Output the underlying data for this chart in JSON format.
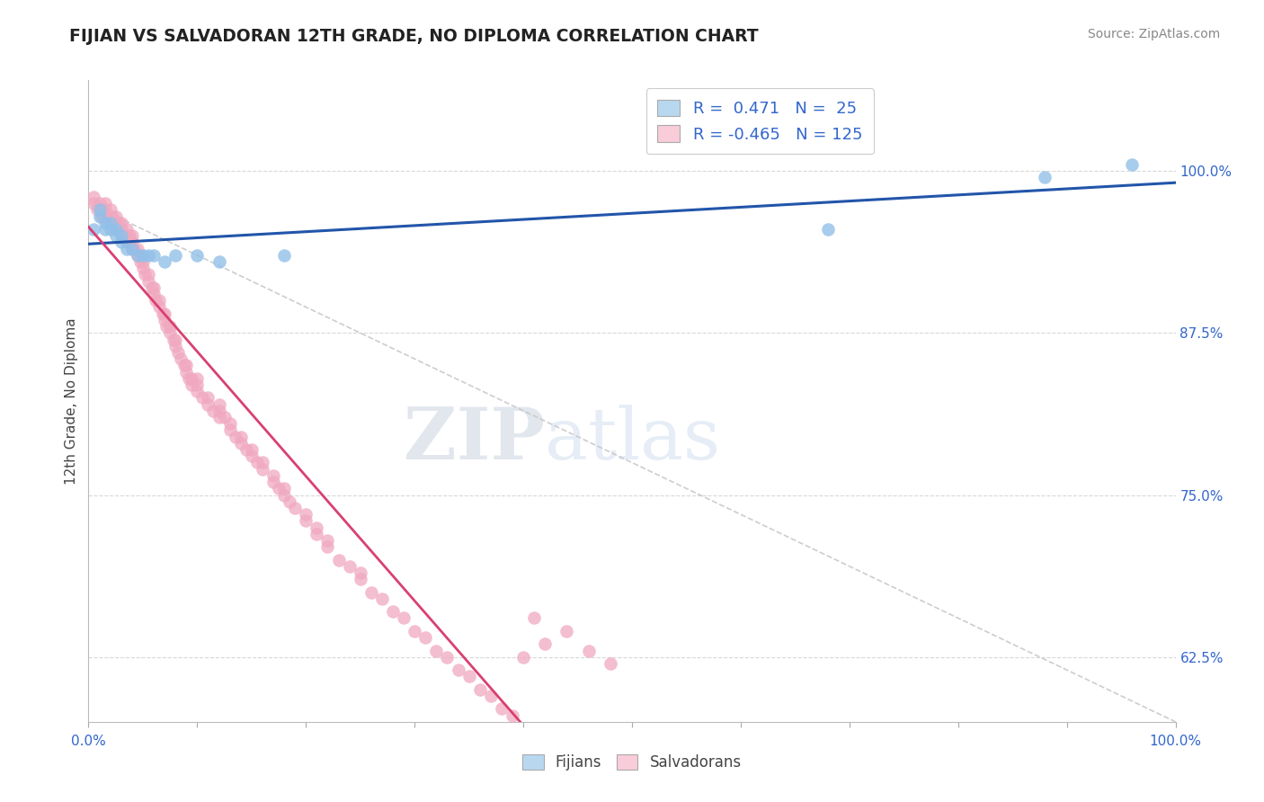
{
  "title": "FIJIAN VS SALVADORAN 12TH GRADE, NO DIPLOMA CORRELATION CHART",
  "source": "Source: ZipAtlas.com",
  "ylabel": "12th Grade, No Diploma",
  "right_yticks": [
    0.625,
    0.75,
    0.875,
    1.0
  ],
  "right_yticklabels": [
    "62.5%",
    "75.0%",
    "87.5%",
    "100.0%"
  ],
  "xlim": [
    0.0,
    1.0
  ],
  "ylim": [
    0.575,
    1.07
  ],
  "fijian_R": 0.471,
  "fijian_N": 25,
  "salvadoran_R": -0.465,
  "salvadoran_N": 125,
  "fijian_color": "#92c0e8",
  "salvadoran_color": "#f0a8bf",
  "fijian_line_color": "#2255aa",
  "salvadoran_line_color": "#d94070",
  "ref_line_color": "#c8c8c8",
  "legend_fijian_box_color": "#b8d8f0",
  "legend_salvadoran_box_color": "#f8ccd8",
  "watermark_zip": "ZIP",
  "watermark_atlas": "atlas",
  "fijian_x": [
    0.005,
    0.01,
    0.01,
    0.015,
    0.015,
    0.02,
    0.02,
    0.025,
    0.025,
    0.03,
    0.03,
    0.035,
    0.04,
    0.045,
    0.05,
    0.055,
    0.06,
    0.07,
    0.08,
    0.1,
    0.12,
    0.18,
    0.68,
    0.88,
    0.96
  ],
  "fijian_y": [
    0.955,
    0.97,
    0.965,
    0.955,
    0.96,
    0.955,
    0.96,
    0.955,
    0.95,
    0.945,
    0.95,
    0.94,
    0.94,
    0.935,
    0.935,
    0.935,
    0.935,
    0.93,
    0.935,
    0.935,
    0.93,
    0.935,
    0.955,
    0.995,
    1.005
  ],
  "salvadoran_x": [
    0.005,
    0.005,
    0.008,
    0.01,
    0.01,
    0.012,
    0.012,
    0.015,
    0.015,
    0.015,
    0.018,
    0.02,
    0.02,
    0.02,
    0.022,
    0.022,
    0.025,
    0.025,
    0.025,
    0.028,
    0.028,
    0.03,
    0.03,
    0.03,
    0.032,
    0.035,
    0.035,
    0.035,
    0.038,
    0.038,
    0.04,
    0.04,
    0.04,
    0.042,
    0.045,
    0.045,
    0.048,
    0.048,
    0.05,
    0.05,
    0.052,
    0.055,
    0.055,
    0.058,
    0.06,
    0.06,
    0.062,
    0.065,
    0.065,
    0.068,
    0.07,
    0.07,
    0.072,
    0.075,
    0.075,
    0.078,
    0.08,
    0.08,
    0.082,
    0.085,
    0.088,
    0.09,
    0.09,
    0.092,
    0.095,
    0.095,
    0.1,
    0.1,
    0.1,
    0.105,
    0.11,
    0.11,
    0.115,
    0.12,
    0.12,
    0.12,
    0.125,
    0.13,
    0.13,
    0.135,
    0.14,
    0.14,
    0.145,
    0.15,
    0.15,
    0.155,
    0.16,
    0.16,
    0.17,
    0.17,
    0.175,
    0.18,
    0.18,
    0.185,
    0.19,
    0.2,
    0.2,
    0.21,
    0.21,
    0.22,
    0.22,
    0.23,
    0.24,
    0.25,
    0.25,
    0.26,
    0.27,
    0.28,
    0.29,
    0.3,
    0.31,
    0.32,
    0.33,
    0.34,
    0.35,
    0.36,
    0.37,
    0.38,
    0.39,
    0.4,
    0.41,
    0.42,
    0.44,
    0.46,
    0.48
  ],
  "salvadoran_y": [
    0.975,
    0.98,
    0.97,
    0.97,
    0.975,
    0.97,
    0.965,
    0.965,
    0.97,
    0.975,
    0.965,
    0.96,
    0.965,
    0.97,
    0.96,
    0.965,
    0.955,
    0.96,
    0.965,
    0.955,
    0.96,
    0.95,
    0.955,
    0.96,
    0.95,
    0.945,
    0.95,
    0.955,
    0.945,
    0.95,
    0.94,
    0.945,
    0.95,
    0.94,
    0.935,
    0.94,
    0.93,
    0.935,
    0.925,
    0.93,
    0.92,
    0.915,
    0.92,
    0.91,
    0.905,
    0.91,
    0.9,
    0.895,
    0.9,
    0.89,
    0.885,
    0.89,
    0.88,
    0.875,
    0.88,
    0.87,
    0.865,
    0.87,
    0.86,
    0.855,
    0.85,
    0.845,
    0.85,
    0.84,
    0.835,
    0.84,
    0.83,
    0.835,
    0.84,
    0.825,
    0.82,
    0.825,
    0.815,
    0.81,
    0.815,
    0.82,
    0.81,
    0.8,
    0.805,
    0.795,
    0.79,
    0.795,
    0.785,
    0.78,
    0.785,
    0.775,
    0.77,
    0.775,
    0.76,
    0.765,
    0.755,
    0.75,
    0.755,
    0.745,
    0.74,
    0.73,
    0.735,
    0.72,
    0.725,
    0.715,
    0.71,
    0.7,
    0.695,
    0.685,
    0.69,
    0.675,
    0.67,
    0.66,
    0.655,
    0.645,
    0.64,
    0.63,
    0.625,
    0.615,
    0.61,
    0.6,
    0.595,
    0.585,
    0.58,
    0.625,
    0.655,
    0.635,
    0.645,
    0.63,
    0.62
  ]
}
